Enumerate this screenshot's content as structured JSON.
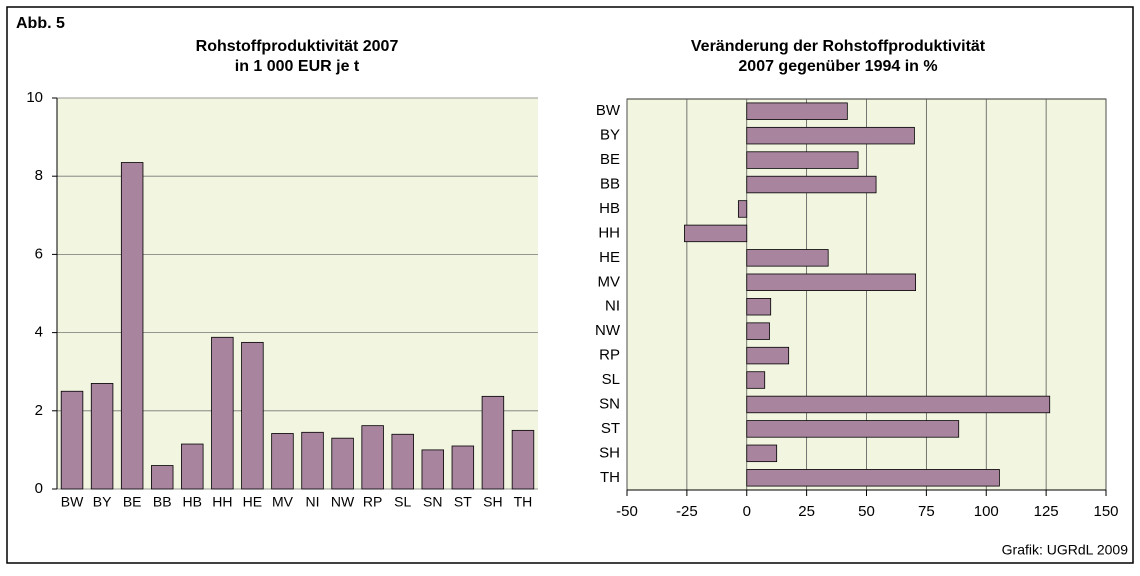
{
  "label": "Abb. 5",
  "source": "Grafik: UGRdL 2009",
  "chart_data": [
    {
      "type": "bar",
      "title": [
        "Rohstoffproduktivität 2007",
        "in 1 000 EUR je t"
      ],
      "categories": [
        "BW",
        "BY",
        "BE",
        "BB",
        "HB",
        "HH",
        "HE",
        "MV",
        "NI",
        "NW",
        "RP",
        "SL",
        "SN",
        "ST",
        "SH",
        "TH"
      ],
      "values": [
        2.5,
        2.7,
        8.35,
        0.6,
        1.15,
        3.88,
        3.75,
        1.42,
        1.45,
        1.3,
        1.62,
        1.4,
        1.0,
        1.1,
        2.37,
        1.5
      ],
      "color": "#a8849f",
      "ylim": [
        0,
        10
      ],
      "yticks": [
        0,
        2,
        4,
        6,
        8,
        10
      ],
      "grid": true
    },
    {
      "type": "hbar",
      "title": [
        "Veränderung der Rohstoffproduktivität",
        "2007 gegenüber 1994 in %"
      ],
      "categories": [
        "BW",
        "BY",
        "BE",
        "BB",
        "HB",
        "HH",
        "HE",
        "MV",
        "NI",
        "NW",
        "RP",
        "SL",
        "SN",
        "ST",
        "SH",
        "TH"
      ],
      "values": [
        42,
        70,
        46.5,
        54,
        -3.5,
        -26,
        34,
        70.5,
        10,
        9.5,
        17.5,
        7.5,
        126.5,
        88.5,
        12.5,
        105.5
      ],
      "color": "#a8849f",
      "xlim": [
        -50,
        150
      ],
      "xticks": [
        -50,
        -25,
        0,
        25,
        50,
        75,
        100,
        125,
        150
      ],
      "grid": true
    }
  ]
}
